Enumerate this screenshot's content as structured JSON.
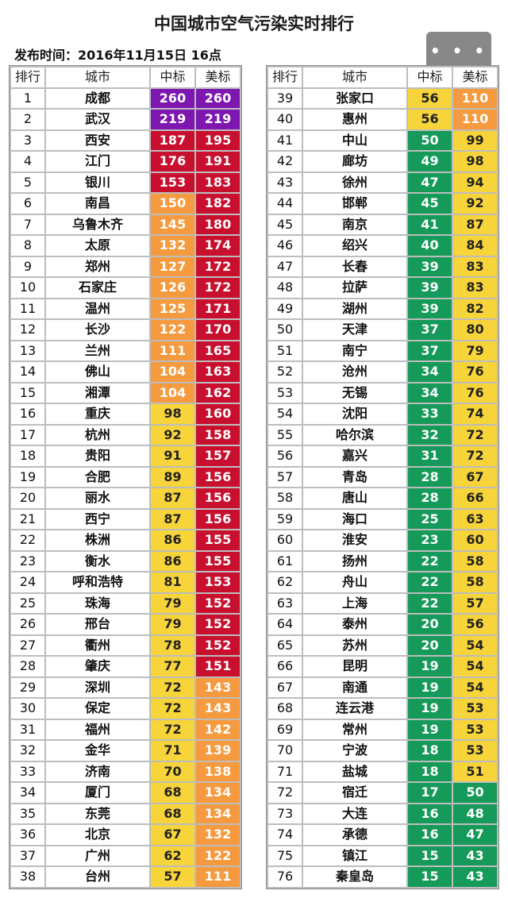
{
  "title": "中国城市空气污染实时排行",
  "publish_time": "发布时间：2016年11月15日 16点",
  "more_button": "• • •",
  "headers": {
    "rank": "排行",
    "city": "城市",
    "cn": "中标",
    "us": "美标"
  },
  "colors": {
    "purple": "#7d17b0",
    "red": "#c8102e",
    "orange": "#f59a3e",
    "yellow": "#f6d43a",
    "green": "#159a5a"
  },
  "rows": [
    {
      "rank": "1",
      "city": "成都",
      "cn": "260",
      "us": "260",
      "cn_color": "purple",
      "us_color": "purple"
    },
    {
      "rank": "2",
      "city": "武汉",
      "cn": "219",
      "us": "219",
      "cn_color": "purple",
      "us_color": "purple"
    },
    {
      "rank": "3",
      "city": "西安",
      "cn": "187",
      "us": "195",
      "cn_color": "red",
      "us_color": "red"
    },
    {
      "rank": "4",
      "city": "江门",
      "cn": "176",
      "us": "191",
      "cn_color": "red",
      "us_color": "red"
    },
    {
      "rank": "5",
      "city": "银川",
      "cn": "153",
      "us": "183",
      "cn_color": "red",
      "us_color": "red"
    },
    {
      "rank": "6",
      "city": "南昌",
      "cn": "150",
      "us": "182",
      "cn_color": "orange",
      "us_color": "red"
    },
    {
      "rank": "7",
      "city": "乌鲁木齐",
      "cn": "145",
      "us": "180",
      "cn_color": "orange",
      "us_color": "red"
    },
    {
      "rank": "8",
      "city": "太原",
      "cn": "132",
      "us": "174",
      "cn_color": "orange",
      "us_color": "red"
    },
    {
      "rank": "9",
      "city": "郑州",
      "cn": "127",
      "us": "172",
      "cn_color": "orange",
      "us_color": "red"
    },
    {
      "rank": "10",
      "city": "石家庄",
      "cn": "126",
      "us": "172",
      "cn_color": "orange",
      "us_color": "red"
    },
    {
      "rank": "11",
      "city": "温州",
      "cn": "125",
      "us": "171",
      "cn_color": "orange",
      "us_color": "red"
    },
    {
      "rank": "12",
      "city": "长沙",
      "cn": "122",
      "us": "170",
      "cn_color": "orange",
      "us_color": "red"
    },
    {
      "rank": "13",
      "city": "兰州",
      "cn": "111",
      "us": "165",
      "cn_color": "orange",
      "us_color": "red"
    },
    {
      "rank": "14",
      "city": "佛山",
      "cn": "104",
      "us": "163",
      "cn_color": "orange",
      "us_color": "red"
    },
    {
      "rank": "15",
      "city": "湘潭",
      "cn": "104",
      "us": "162",
      "cn_color": "orange",
      "us_color": "red"
    },
    {
      "rank": "16",
      "city": "重庆",
      "cn": "98",
      "us": "160",
      "cn_color": "yellow",
      "us_color": "red"
    },
    {
      "rank": "17",
      "city": "杭州",
      "cn": "92",
      "us": "158",
      "cn_color": "yellow",
      "us_color": "red"
    },
    {
      "rank": "18",
      "city": "贵阳",
      "cn": "91",
      "us": "157",
      "cn_color": "yellow",
      "us_color": "red"
    },
    {
      "rank": "19",
      "city": "合肥",
      "cn": "89",
      "us": "156",
      "cn_color": "yellow",
      "us_color": "red"
    },
    {
      "rank": "20",
      "city": "丽水",
      "cn": "87",
      "us": "156",
      "cn_color": "yellow",
      "us_color": "red"
    },
    {
      "rank": "21",
      "city": "西宁",
      "cn": "87",
      "us": "156",
      "cn_color": "yellow",
      "us_color": "red"
    },
    {
      "rank": "22",
      "city": "株洲",
      "cn": "86",
      "us": "155",
      "cn_color": "yellow",
      "us_color": "red"
    },
    {
      "rank": "23",
      "city": "衡水",
      "cn": "86",
      "us": "155",
      "cn_color": "yellow",
      "us_color": "red"
    },
    {
      "rank": "24",
      "city": "呼和浩特",
      "cn": "81",
      "us": "153",
      "cn_color": "yellow",
      "us_color": "red"
    },
    {
      "rank": "25",
      "city": "珠海",
      "cn": "79",
      "us": "152",
      "cn_color": "yellow",
      "us_color": "red"
    },
    {
      "rank": "26",
      "city": "邢台",
      "cn": "79",
      "us": "152",
      "cn_color": "yellow",
      "us_color": "red"
    },
    {
      "rank": "27",
      "city": "衢州",
      "cn": "78",
      "us": "152",
      "cn_color": "yellow",
      "us_color": "red"
    },
    {
      "rank": "28",
      "city": "肇庆",
      "cn": "77",
      "us": "151",
      "cn_color": "yellow",
      "us_color": "red"
    },
    {
      "rank": "29",
      "city": "深圳",
      "cn": "72",
      "us": "143",
      "cn_color": "yellow",
      "us_color": "orange"
    },
    {
      "rank": "30",
      "city": "保定",
      "cn": "72",
      "us": "143",
      "cn_color": "yellow",
      "us_color": "orange"
    },
    {
      "rank": "31",
      "city": "福州",
      "cn": "72",
      "us": "142",
      "cn_color": "yellow",
      "us_color": "orange"
    },
    {
      "rank": "32",
      "city": "金华",
      "cn": "71",
      "us": "139",
      "cn_color": "yellow",
      "us_color": "orange"
    },
    {
      "rank": "33",
      "city": "济南",
      "cn": "70",
      "us": "138",
      "cn_color": "yellow",
      "us_color": "orange"
    },
    {
      "rank": "34",
      "city": "厦门",
      "cn": "68",
      "us": "134",
      "cn_color": "yellow",
      "us_color": "orange"
    },
    {
      "rank": "35",
      "city": "东莞",
      "cn": "68",
      "us": "134",
      "cn_color": "yellow",
      "us_color": "orange"
    },
    {
      "rank": "36",
      "city": "北京",
      "cn": "67",
      "us": "132",
      "cn_color": "yellow",
      "us_color": "orange"
    },
    {
      "rank": "37",
      "city": "广州",
      "cn": "62",
      "us": "122",
      "cn_color": "yellow",
      "us_color": "orange"
    },
    {
      "rank": "38",
      "city": "台州",
      "cn": "57",
      "us": "111",
      "cn_color": "yellow",
      "us_color": "orange"
    },
    {
      "rank": "39",
      "city": "张家口",
      "cn": "56",
      "us": "110",
      "cn_color": "yellow",
      "us_color": "orange"
    },
    {
      "rank": "40",
      "city": "惠州",
      "cn": "56",
      "us": "110",
      "cn_color": "yellow",
      "us_color": "orange"
    },
    {
      "rank": "41",
      "city": "中山",
      "cn": "50",
      "us": "99",
      "cn_color": "green",
      "us_color": "yellow"
    },
    {
      "rank": "42",
      "city": "廊坊",
      "cn": "49",
      "us": "98",
      "cn_color": "green",
      "us_color": "yellow"
    },
    {
      "rank": "43",
      "city": "徐州",
      "cn": "47",
      "us": "94",
      "cn_color": "green",
      "us_color": "yellow"
    },
    {
      "rank": "44",
      "city": "邯郸",
      "cn": "45",
      "us": "92",
      "cn_color": "green",
      "us_color": "yellow"
    },
    {
      "rank": "45",
      "city": "南京",
      "cn": "41",
      "us": "87",
      "cn_color": "green",
      "us_color": "yellow"
    },
    {
      "rank": "46",
      "city": "绍兴",
      "cn": "40",
      "us": "84",
      "cn_color": "green",
      "us_color": "yellow"
    },
    {
      "rank": "47",
      "city": "长春",
      "cn": "39",
      "us": "83",
      "cn_color": "green",
      "us_color": "yellow"
    },
    {
      "rank": "48",
      "city": "拉萨",
      "cn": "39",
      "us": "83",
      "cn_color": "green",
      "us_color": "yellow"
    },
    {
      "rank": "49",
      "city": "湖州",
      "cn": "39",
      "us": "82",
      "cn_color": "green",
      "us_color": "yellow"
    },
    {
      "rank": "50",
      "city": "天津",
      "cn": "37",
      "us": "80",
      "cn_color": "green",
      "us_color": "yellow"
    },
    {
      "rank": "51",
      "city": "南宁",
      "cn": "37",
      "us": "79",
      "cn_color": "green",
      "us_color": "yellow"
    },
    {
      "rank": "52",
      "city": "沧州",
      "cn": "34",
      "us": "76",
      "cn_color": "green",
      "us_color": "yellow"
    },
    {
      "rank": "53",
      "city": "无锡",
      "cn": "34",
      "us": "76",
      "cn_color": "green",
      "us_color": "yellow"
    },
    {
      "rank": "54",
      "city": "沈阳",
      "cn": "33",
      "us": "74",
      "cn_color": "green",
      "us_color": "yellow"
    },
    {
      "rank": "55",
      "city": "哈尔滨",
      "cn": "32",
      "us": "72",
      "cn_color": "green",
      "us_color": "yellow"
    },
    {
      "rank": "56",
      "city": "嘉兴",
      "cn": "31",
      "us": "72",
      "cn_color": "green",
      "us_color": "yellow"
    },
    {
      "rank": "57",
      "city": "青岛",
      "cn": "28",
      "us": "67",
      "cn_color": "green",
      "us_color": "yellow"
    },
    {
      "rank": "58",
      "city": "唐山",
      "cn": "28",
      "us": "66",
      "cn_color": "green",
      "us_color": "yellow"
    },
    {
      "rank": "59",
      "city": "海口",
      "cn": "25",
      "us": "63",
      "cn_color": "green",
      "us_color": "yellow"
    },
    {
      "rank": "60",
      "city": "淮安",
      "cn": "23",
      "us": "60",
      "cn_color": "green",
      "us_color": "yellow"
    },
    {
      "rank": "61",
      "city": "扬州",
      "cn": "22",
      "us": "58",
      "cn_color": "green",
      "us_color": "yellow"
    },
    {
      "rank": "62",
      "city": "舟山",
      "cn": "22",
      "us": "58",
      "cn_color": "green",
      "us_color": "yellow"
    },
    {
      "rank": "63",
      "city": "上海",
      "cn": "22",
      "us": "57",
      "cn_color": "green",
      "us_color": "yellow"
    },
    {
      "rank": "64",
      "city": "泰州",
      "cn": "20",
      "us": "56",
      "cn_color": "green",
      "us_color": "yellow"
    },
    {
      "rank": "65",
      "city": "苏州",
      "cn": "20",
      "us": "54",
      "cn_color": "green",
      "us_color": "yellow"
    },
    {
      "rank": "66",
      "city": "昆明",
      "cn": "19",
      "us": "54",
      "cn_color": "green",
      "us_color": "yellow"
    },
    {
      "rank": "67",
      "city": "南通",
      "cn": "19",
      "us": "54",
      "cn_color": "green",
      "us_color": "yellow"
    },
    {
      "rank": "68",
      "city": "连云港",
      "cn": "19",
      "us": "53",
      "cn_color": "green",
      "us_color": "yellow"
    },
    {
      "rank": "69",
      "city": "常州",
      "cn": "19",
      "us": "53",
      "cn_color": "green",
      "us_color": "yellow"
    },
    {
      "rank": "70",
      "city": "宁波",
      "cn": "18",
      "us": "53",
      "cn_color": "green",
      "us_color": "yellow"
    },
    {
      "rank": "71",
      "city": "盐城",
      "cn": "18",
      "us": "51",
      "cn_color": "green",
      "us_color": "yellow"
    },
    {
      "rank": "72",
      "city": "宿迁",
      "cn": "17",
      "us": "50",
      "cn_color": "green",
      "us_color": "green"
    },
    {
      "rank": "73",
      "city": "大连",
      "cn": "16",
      "us": "48",
      "cn_color": "green",
      "us_color": "green"
    },
    {
      "rank": "74",
      "city": "承德",
      "cn": "16",
      "us": "47",
      "cn_color": "green",
      "us_color": "green"
    },
    {
      "rank": "75",
      "city": "镇江",
      "cn": "15",
      "us": "43",
      "cn_color": "green",
      "us_color": "green"
    },
    {
      "rank": "76",
      "city": "秦皇岛",
      "cn": "15",
      "us": "43",
      "cn_color": "green",
      "us_color": "green"
    }
  ]
}
